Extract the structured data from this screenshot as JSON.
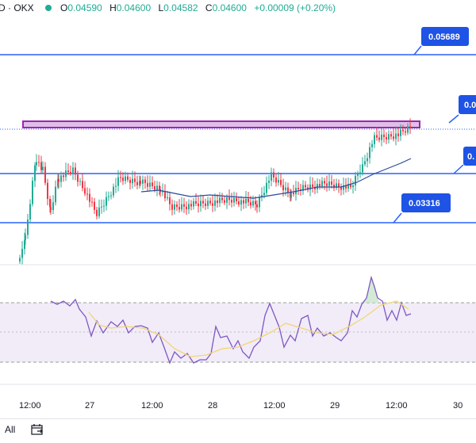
{
  "header": {
    "pair": "D · OKX",
    "open_label": "O",
    "open": "0.04590",
    "high_label": "H",
    "high": "0.04600",
    "low_label": "L",
    "low": "0.04582",
    "close_label": "C",
    "close": "0.04600",
    "change": "+0.00009 (+0.20%)",
    "live_color": "#22ab94"
  },
  "levels": [
    {
      "label": "0.05689"
    },
    {
      "label": "0.0"
    },
    {
      "label": "0."
    },
    {
      "label": "0.03316"
    }
  ],
  "resistance_zone_color": "#9c27b0",
  "level_line_color": "#2962ff",
  "x_axis_labels": [
    "12:00",
    "27",
    "12:00",
    "28",
    "12:00",
    "29",
    "12:00",
    "30"
  ],
  "footer": {
    "range_label": "All",
    "calendar_icon": "calendar-icon"
  },
  "chart_data": {
    "type": "candlestick",
    "rsi_band_fill": "#ede7f6",
    "up_color": "#22ab94",
    "down_color": "#f23645",
    "ma_color": "#2a4b9b",
    "rsi_color": "#7e57c2",
    "rsi_ma_color": "#f2d572"
  }
}
